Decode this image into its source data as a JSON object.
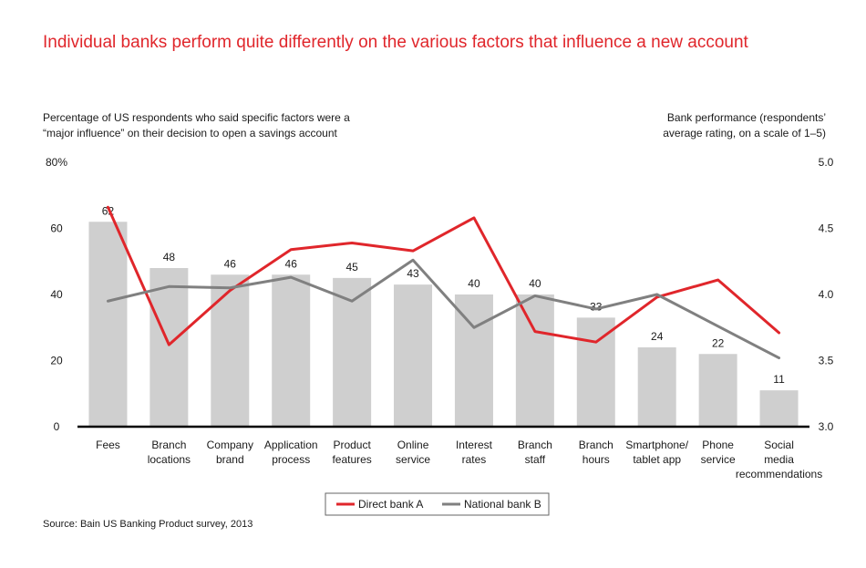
{
  "title": "Individual banks perform quite differently on the various factors that influence a new account",
  "left_axis_note": [
    "Percentage of US respondents who said specific factors were a",
    "“major influence” on their decision to open a savings account"
  ],
  "right_axis_note": [
    "Bank performance (respondents’",
    "average rating, on a scale of 1–5)"
  ],
  "source": "Source: Bain US Banking Product survey, 2013",
  "colors": {
    "bars": "#cfcfcf",
    "direct_bank_a": "#e0262b",
    "national_bank_b": "#808080",
    "title": "#e0262b"
  },
  "chart_data": {
    "type": "bar",
    "categories": [
      [
        "Fees"
      ],
      [
        "Branch",
        "locations"
      ],
      [
        "Company",
        "brand"
      ],
      [
        "Application",
        "process"
      ],
      [
        "Product",
        "features"
      ],
      [
        "Online",
        "service"
      ],
      [
        "Interest",
        "rates"
      ],
      [
        "Branch",
        "staff"
      ],
      [
        "Branch",
        "hours"
      ],
      [
        "Smartphone/",
        "tablet app"
      ],
      [
        "Phone",
        "service"
      ],
      [
        "Social",
        "media",
        "recommendations"
      ]
    ],
    "values": [
      62,
      48,
      46,
      46,
      45,
      43,
      40,
      40,
      33,
      24,
      22,
      11
    ],
    "data_labels": [
      "62",
      "48",
      "46",
      "46",
      "45",
      "43",
      "40",
      "40",
      "33",
      "24",
      "22",
      "11"
    ],
    "ylim": [
      0,
      80
    ],
    "y_ticks": [
      "0",
      "20",
      "40",
      "60",
      "80%"
    ],
    "y_tick_values": [
      0,
      20,
      40,
      60,
      80
    ],
    "y2lim": [
      3.0,
      5.0
    ],
    "y2_ticks": [
      "3.0",
      "3.5",
      "4.0",
      "4.5",
      "5.0"
    ],
    "y2_tick_values": [
      3.0,
      3.5,
      4.0,
      4.5,
      5.0
    ],
    "series": [
      {
        "name": "Direct bank A",
        "axis": "right",
        "values": [
          4.66,
          3.62,
          4.03,
          4.34,
          4.39,
          4.33,
          4.58,
          3.72,
          3.64,
          3.98,
          4.11,
          3.71
        ]
      },
      {
        "name": "National bank B",
        "axis": "right",
        "values": [
          3.95,
          4.06,
          4.05,
          4.13,
          3.95,
          4.26,
          3.75,
          3.99,
          3.89,
          4.0,
          3.76,
          3.52
        ]
      }
    ],
    "legend": "bottom-center",
    "grid": false
  }
}
